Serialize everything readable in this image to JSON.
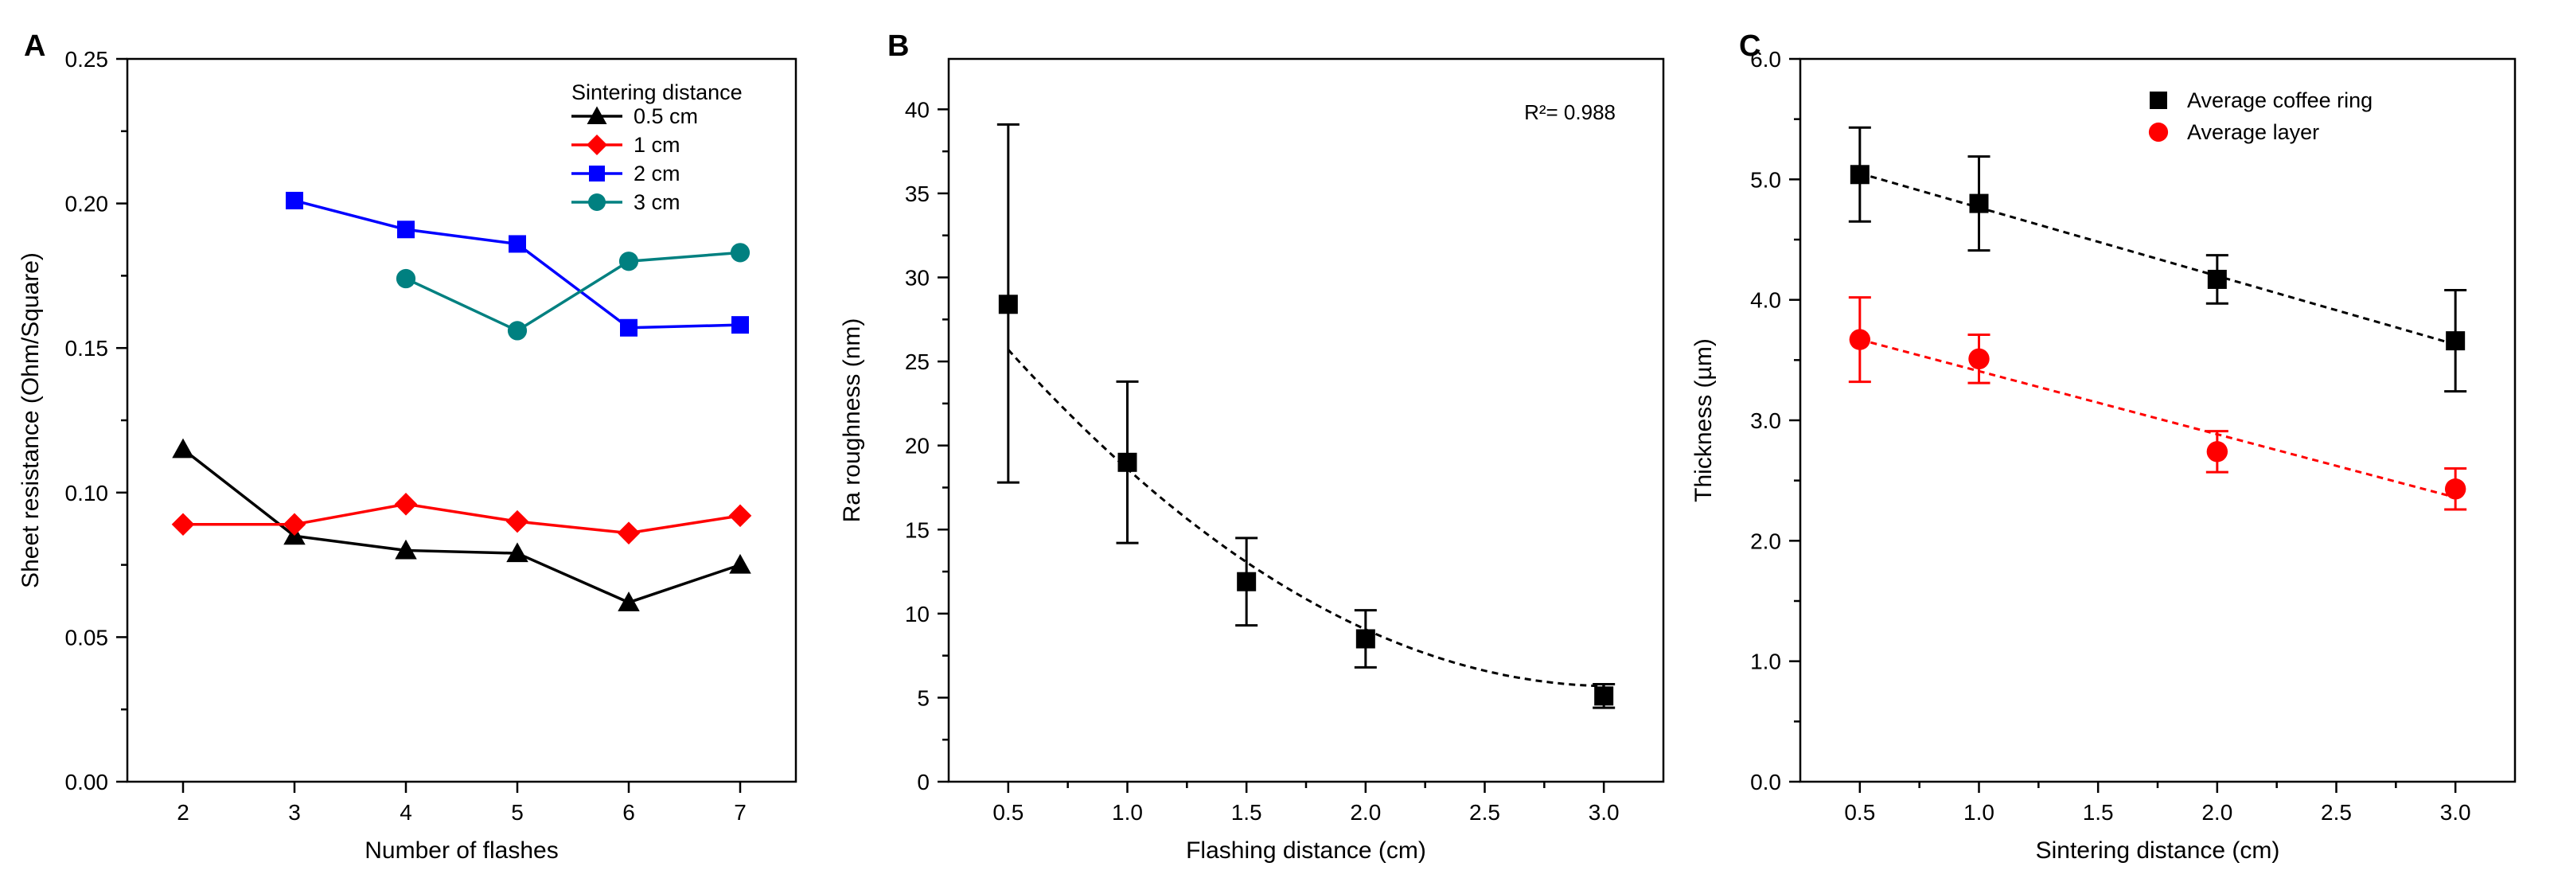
{
  "chart_data": [
    {
      "panel": "A",
      "type": "line",
      "title": "",
      "xlabel": "Number of flashes",
      "ylabel": "Sheet resistance (Ohm/Square)",
      "xlim": [
        1.5,
        7.5
      ],
      "ylim": [
        0,
        0.25
      ],
      "xticks": [
        2,
        3,
        4,
        5,
        6,
        7
      ],
      "xtick_labels": [
        "2",
        "3",
        "4",
        "5",
        "6",
        "7"
      ],
      "yticks": [
        0,
        0.05,
        0.1,
        0.15,
        0.2,
        0.25
      ],
      "ytick_labels": [
        "0.00",
        "0.05",
        "0.10",
        "0.15",
        "0.20",
        "0.25"
      ],
      "legend_title": "Sintering distance",
      "legend_position": "top-right",
      "series": [
        {
          "name": "0.5 cm",
          "color": "#000000",
          "marker": "triangle",
          "x": [
            2,
            3,
            4,
            5,
            6,
            7
          ],
          "y": [
            0.115,
            0.085,
            0.08,
            0.079,
            0.062,
            0.075
          ]
        },
        {
          "name": "1 cm",
          "color": "#ff0000",
          "marker": "diamond",
          "x": [
            2,
            3,
            4,
            5,
            6,
            7
          ],
          "y": [
            0.089,
            0.089,
            0.096,
            0.09,
            0.086,
            0.092
          ]
        },
        {
          "name": "2 cm",
          "color": "#0000ff",
          "marker": "square",
          "x": [
            3,
            4,
            5,
            6,
            7
          ],
          "y": [
            0.201,
            0.191,
            0.186,
            0.157,
            0.158
          ]
        },
        {
          "name": "3 cm",
          "color": "#008080",
          "marker": "circle",
          "x": [
            4,
            5,
            6,
            7
          ],
          "y": [
            0.174,
            0.156,
            0.18,
            0.183
          ]
        }
      ]
    },
    {
      "panel": "B",
      "type": "scatter",
      "title": "",
      "xlabel": "Flashing distance (cm)",
      "ylabel": "Ra roughness (nm)",
      "xlim": [
        0.25,
        3.25
      ],
      "ylim": [
        0,
        43
      ],
      "xticks": [
        0.5,
        1.0,
        1.5,
        2.0,
        2.5,
        3.0
      ],
      "xtick_labels": [
        "0.5",
        "1.0",
        "1.5",
        "2.0",
        "2.5",
        "3.0"
      ],
      "yticks": [
        0,
        5,
        10,
        15,
        20,
        25,
        30,
        35,
        40
      ],
      "ytick_labels": [
        "0",
        "5",
        "10",
        "15",
        "20",
        "25",
        "30",
        "35",
        "40"
      ],
      "annotation": "R²= 0.988",
      "series": [
        {
          "name": "Ra roughness",
          "color": "#000000",
          "marker": "square",
          "x": [
            0.5,
            1.0,
            1.5,
            2.0,
            3.0
          ],
          "y": [
            28.4,
            19.0,
            11.9,
            8.5,
            5.1
          ],
          "err_low": [
            17.8,
            14.2,
            9.3,
            6.8,
            4.4
          ],
          "err_high": [
            39.1,
            23.8,
            14.5,
            10.2,
            5.8
          ]
        }
      ],
      "fit": {
        "type": "quadratic",
        "coefficients": [
          34.34,
          -18.82,
          3.09
        ],
        "x_range": [
          0.5,
          3.0
        ],
        "style": "dashed",
        "color": "#000000"
      }
    },
    {
      "panel": "C",
      "type": "scatter",
      "title": "",
      "xlabel": "Sintering distance (cm)",
      "ylabel": "Thickness (µm)",
      "xlim": [
        0.25,
        3.25
      ],
      "ylim": [
        0,
        6
      ],
      "xticks": [
        0.5,
        1.0,
        1.5,
        2.0,
        2.5,
        3.0
      ],
      "xtick_labels": [
        "0.5",
        "1.0",
        "1.5",
        "2.0",
        "2.5",
        "3.0"
      ],
      "yticks": [
        0,
        1,
        2,
        3,
        4,
        5,
        6
      ],
      "ytick_labels": [
        "0.0",
        "1.0",
        "2.0",
        "3.0",
        "4.0",
        "5.0",
        "6.0"
      ],
      "legend_position": "top-right",
      "series": [
        {
          "name": "Average coffee ring",
          "color": "#000000",
          "marker": "square",
          "x": [
            0.5,
            1.0,
            2.0,
            3.0
          ],
          "y": [
            5.04,
            4.8,
            4.17,
            3.66
          ],
          "err_low": [
            4.65,
            4.41,
            3.97,
            3.24
          ],
          "err_high": [
            5.43,
            5.19,
            4.37,
            4.08
          ],
          "fit": {
            "x": [
              0.5,
              3.0
            ],
            "y": [
              5.05,
              3.63
            ],
            "style": "dashed"
          }
        },
        {
          "name": "Average layer",
          "color": "#ff0000",
          "marker": "circle",
          "x": [
            0.5,
            1.0,
            2.0,
            3.0
          ],
          "y": [
            3.67,
            3.51,
            2.74,
            2.43
          ],
          "err_low": [
            3.32,
            3.31,
            2.57,
            2.26
          ],
          "err_high": [
            4.02,
            3.71,
            2.91,
            2.6
          ],
          "fit": {
            "x": [
              0.5,
              3.0
            ],
            "y": [
              3.67,
              2.36
            ],
            "style": "dashed"
          }
        }
      ]
    }
  ]
}
